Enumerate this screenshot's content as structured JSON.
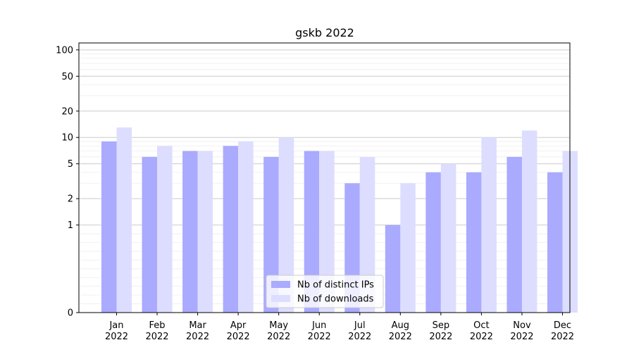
{
  "chart_data": {
    "type": "bar",
    "title": "gskb 2022",
    "xlabel": "",
    "ylabel": "",
    "y_scale": "symlog",
    "ylim": [
      0,
      120
    ],
    "y_ticks": [
      0,
      1,
      2,
      5,
      10,
      20,
      50,
      100
    ],
    "categories": [
      [
        "Jan",
        "2022"
      ],
      [
        "Feb",
        "2022"
      ],
      [
        "Mar",
        "2022"
      ],
      [
        "Apr",
        "2022"
      ],
      [
        "May",
        "2022"
      ],
      [
        "Jun",
        "2022"
      ],
      [
        "Jul",
        "2022"
      ],
      [
        "Aug",
        "2022"
      ],
      [
        "Sep",
        "2022"
      ],
      [
        "Oct",
        "2022"
      ],
      [
        "Nov",
        "2022"
      ],
      [
        "Dec",
        "2022"
      ]
    ],
    "series": [
      {
        "name": "Nb of distinct IPs",
        "color": "#aaaaff",
        "values": [
          9,
          6,
          7,
          8,
          6,
          7,
          3,
          1,
          4,
          4,
          6,
          4
        ]
      },
      {
        "name": "Nb of downloads",
        "color": "#ddddff",
        "values": [
          13,
          8,
          7,
          9,
          10,
          7,
          6,
          3,
          5,
          10,
          12,
          7
        ]
      }
    ],
    "legend_position": "bottom-center",
    "grid": true
  }
}
